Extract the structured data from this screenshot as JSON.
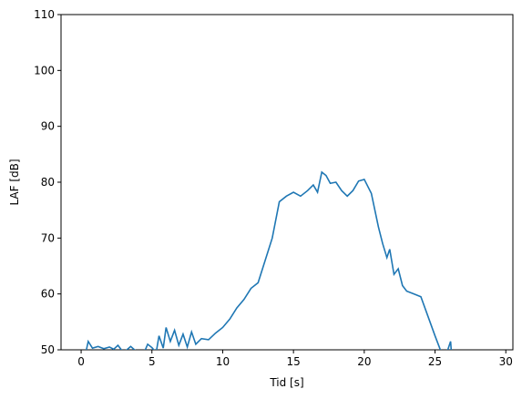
{
  "chart_data": {
    "type": "line",
    "xlabel": "Tid [s]",
    "ylabel": "LAF [dB]",
    "x": [
      0.2,
      0.5,
      0.8,
      1.2,
      1.6,
      2.0,
      2.3,
      2.6,
      3.0,
      3.5,
      4.0,
      4.5,
      4.7,
      5.0,
      5.3,
      5.5,
      5.8,
      6.0,
      6.3,
      6.6,
      6.9,
      7.2,
      7.5,
      7.8,
      8.1,
      8.5,
      9.0,
      9.5,
      10.0,
      10.5,
      11.0,
      11.5,
      12.0,
      12.5,
      13.0,
      13.5,
      14.0,
      14.5,
      15.0,
      15.5,
      16.0,
      16.4,
      16.7,
      17.0,
      17.3,
      17.6,
      18.0,
      18.4,
      18.8,
      19.2,
      19.6,
      20.0,
      20.5,
      21.0,
      21.3,
      21.6,
      21.8,
      22.1,
      22.4,
      22.7,
      23.0,
      23.5,
      24.0,
      24.5,
      25.0,
      25.3,
      25.6,
      25.9,
      26.1,
      26.2
    ],
    "series": [
      {
        "name": "LAF",
        "color": "#1f77b4",
        "values": [
          48,
          51.5,
          50.3,
          50.6,
          50.2,
          50.5,
          50.1,
          50.8,
          49.5,
          50.6,
          49.5,
          49.8,
          51,
          50.4,
          49.5,
          52.5,
          50.3,
          54,
          51.5,
          53.5,
          50.8,
          52.8,
          50.5,
          53.2,
          51,
          52,
          51.8,
          53,
          54,
          55.5,
          57.5,
          59,
          61,
          62,
          66,
          70,
          76.5,
          77.5,
          78.2,
          77.5,
          78.5,
          79.5,
          78.2,
          81.8,
          81.2,
          79.8,
          80,
          78.5,
          77.5,
          78.5,
          80.2,
          80.5,
          78,
          72,
          69,
          66.5,
          68,
          63.5,
          64.5,
          61.5,
          60.5,
          60,
          59.5,
          56,
          52.5,
          50.5,
          48.5,
          50,
          51.5,
          48
        ]
      }
    ],
    "xlim": [
      -1.42,
      30.5
    ],
    "ylim": [
      50,
      110
    ],
    "xticks": [
      0,
      5,
      10,
      15,
      20,
      25,
      30
    ],
    "yticks": [
      50,
      60,
      70,
      80,
      90,
      100,
      110
    ]
  }
}
